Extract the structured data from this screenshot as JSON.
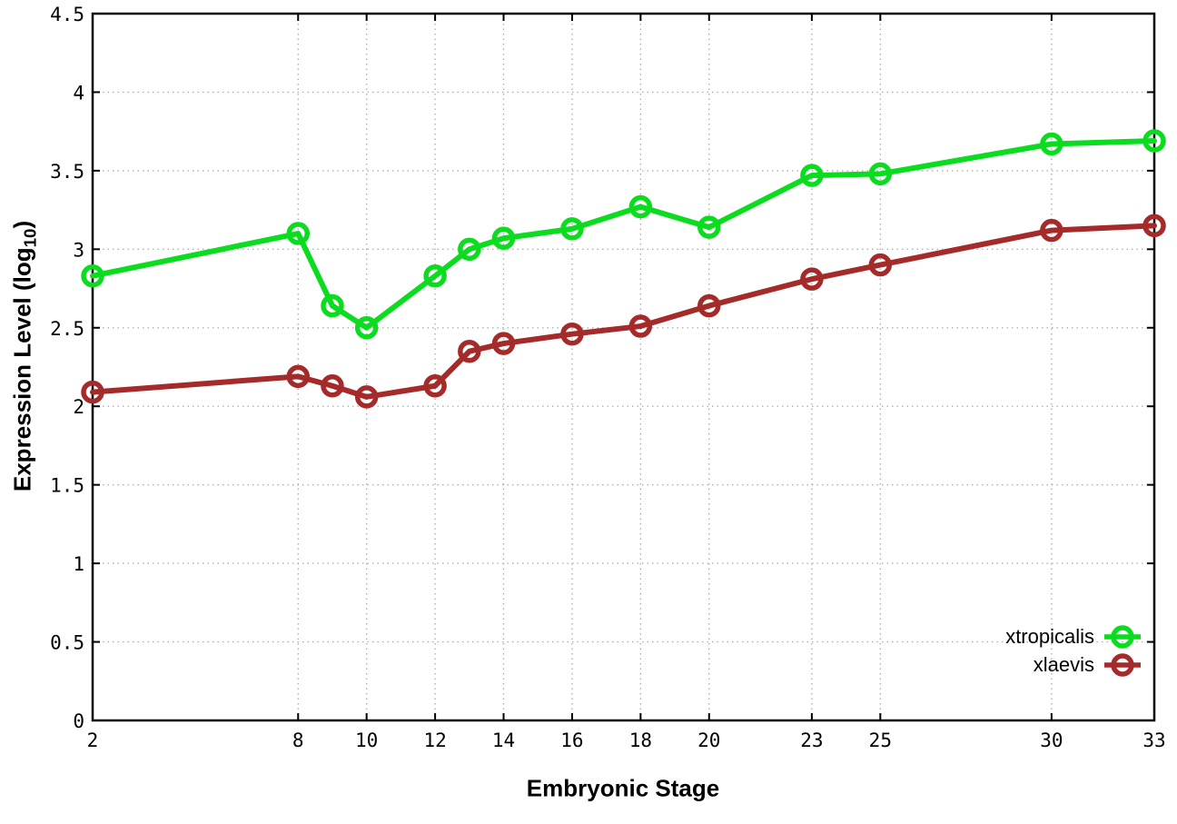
{
  "chart_data": {
    "type": "line",
    "xlabel": "Embryonic Stage",
    "ylabel": "Expression Level (log10)",
    "ylabel_parts": {
      "main": "Expression Level (log",
      "sub": "10",
      "close": ")"
    },
    "x": [
      2,
      8,
      9,
      10,
      12,
      13,
      14,
      16,
      18,
      20,
      23,
      25,
      30,
      33
    ],
    "series": [
      {
        "name": "xtropicalis",
        "color": "#0bdc20",
        "values": [
          2.83,
          3.1,
          2.64,
          2.5,
          2.83,
          3.0,
          3.07,
          3.13,
          3.27,
          3.14,
          3.47,
          3.48,
          3.67,
          3.69
        ]
      },
      {
        "name": "xlaevis",
        "color": "#a52a2a",
        "values": [
          2.09,
          2.19,
          2.13,
          2.06,
          2.13,
          2.35,
          2.4,
          2.46,
          2.51,
          2.64,
          2.81,
          2.9,
          3.12,
          3.15
        ]
      }
    ],
    "xlim": [
      2,
      33
    ],
    "ylim": [
      0,
      4.5
    ],
    "x_ticks": [
      2,
      8,
      10,
      12,
      14,
      16,
      18,
      20,
      23,
      25,
      30,
      33
    ],
    "x_tick_labels": [
      "2",
      "8",
      "10",
      "12",
      "14",
      "16",
      "18",
      "20",
      "23",
      "25",
      "30",
      "33"
    ],
    "y_ticks": [
      0,
      0.5,
      1,
      1.5,
      2,
      2.5,
      3,
      3.5,
      4,
      4.5
    ],
    "y_tick_labels": [
      "0",
      "0.5",
      "1",
      "1.5",
      "2",
      "2.5",
      "3",
      "3.5",
      "4",
      "4.5"
    ],
    "grid": true,
    "marker": "open-circle",
    "legend_position": "bottom-right-inside",
    "colors": {
      "background": "#ffffff",
      "axis": "#000000",
      "grid": "#b0b0b0"
    }
  }
}
